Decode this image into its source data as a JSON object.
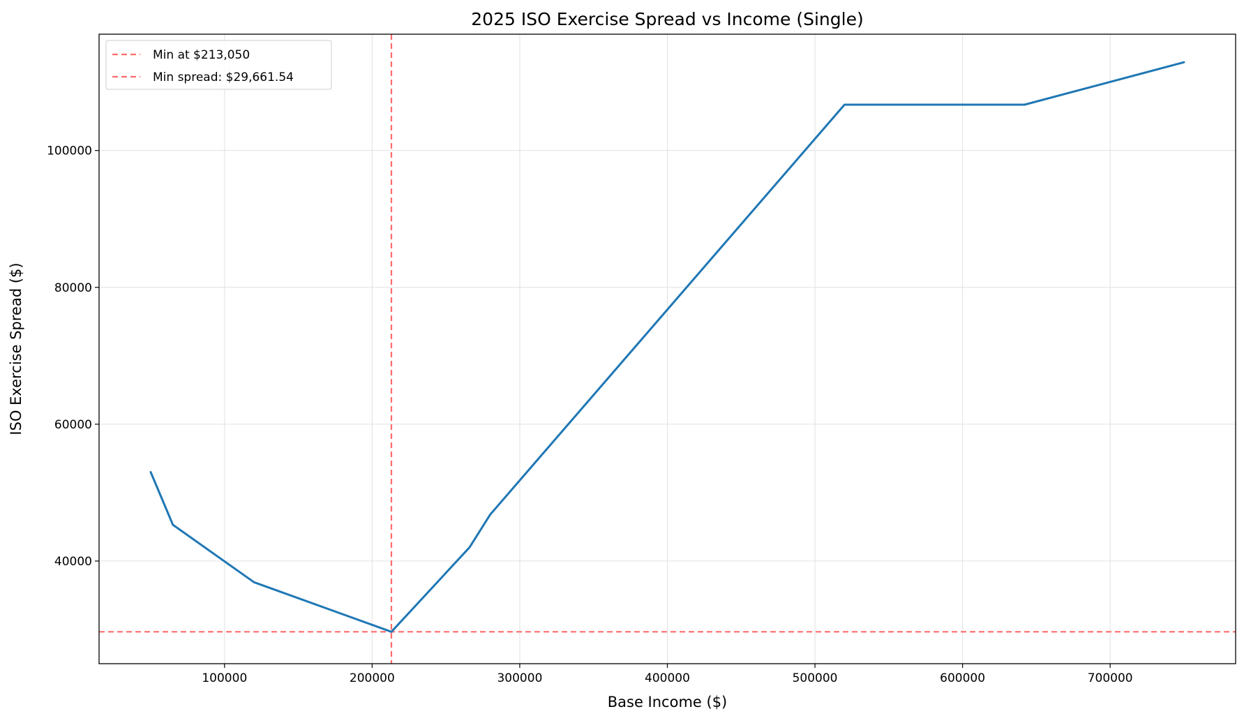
{
  "chart_data": {
    "type": "line",
    "title": "2025 ISO Exercise Spread vs Income (Single)",
    "xlabel": "Base Income ($)",
    "ylabel": "ISO Exercise Spread ($)",
    "xlim": [
      15000,
      785000
    ],
    "ylim": [
      25000,
      117000
    ],
    "xticks": [
      100000,
      200000,
      300000,
      400000,
      500000,
      600000,
      700000
    ],
    "yticks": [
      40000,
      60000,
      80000,
      100000
    ],
    "grid": true,
    "legend_position": "top-left",
    "series": [
      {
        "color": "#1f77b4",
        "x": [
          50000,
          65000,
          120000,
          213050,
          266000,
          280000,
          520000,
          642000,
          750000
        ],
        "y": [
          53000,
          45300,
          36900,
          29661.54,
          42000,
          46800,
          106700,
          106700,
          112900
        ]
      }
    ],
    "reference_lines": [
      {
        "orientation": "vertical",
        "value": 213050,
        "label": "Min at $213,050",
        "color": "#ff6b6b"
      },
      {
        "orientation": "horizontal",
        "value": 29661.54,
        "label": "Min spread: $29,661.54",
        "color": "#ff6b6b"
      }
    ]
  }
}
